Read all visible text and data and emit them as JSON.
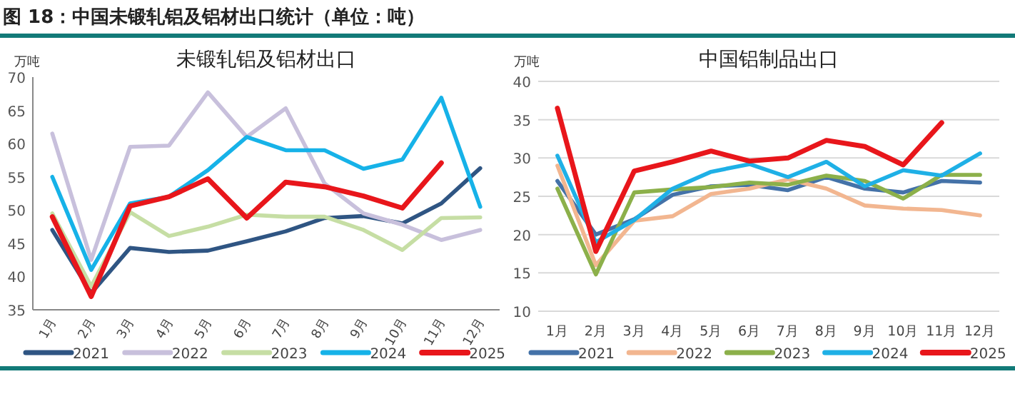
{
  "chart_data": [
    {
      "type": "line",
      "title": "未锻轧铝及铝材出口",
      "ylabel": "万吨",
      "annotations": [
        "图 18：中国未锻轧铝及铝材出口统计（单位：吨）"
      ],
      "categories": [
        "1月",
        "2月",
        "3月",
        "4月",
        "5月",
        "6月",
        "7月",
        "8月",
        "9月",
        "10月",
        "11月",
        "12月"
      ],
      "ylim": [
        35,
        70
      ],
      "yticks": [
        35,
        40,
        45,
        50,
        55,
        60,
        65,
        70
      ],
      "grid": false,
      "legend": "bottom",
      "marker": "none",
      "series": [
        {
          "name": "2021",
          "color": "#2f5583",
          "values": [
            47,
            37.5,
            44.3,
            43.7,
            43.9,
            45.3,
            46.8,
            48.8,
            49.1,
            48,
            51,
            56.3
          ]
        },
        {
          "name": "2022",
          "color": "#c8c0dc",
          "values": [
            61.5,
            42.5,
            59.5,
            59.7,
            67.7,
            61,
            65.3,
            54,
            49.5,
            47.8,
            45.5,
            47
          ]
        },
        {
          "name": "2023",
          "color": "#c6dea4",
          "values": [
            49.5,
            38.5,
            49.7,
            46.1,
            47.5,
            49.3,
            49,
            49,
            47,
            44,
            48.8,
            48.9
          ]
        },
        {
          "name": "2024",
          "color": "#16b2e8",
          "values": [
            55,
            41,
            51,
            52,
            56,
            61,
            59,
            59,
            56.2,
            57.6,
            66.9,
            50.5
          ]
        },
        {
          "name": "2025",
          "color": "#e8161b",
          "values": [
            49,
            37,
            50.6,
            52,
            54.7,
            48.8,
            54.2,
            53.5,
            52.1,
            50.3,
            57.1,
            null
          ]
        }
      ]
    },
    {
      "type": "line",
      "title": "中国铝制品出口",
      "ylabel": "万吨",
      "categories": [
        "1月",
        "2月",
        "3月",
        "4月",
        "5月",
        "6月",
        "7月",
        "8月",
        "9月",
        "10月",
        "11月",
        "12月"
      ],
      "ylim": [
        10,
        40
      ],
      "yticks": [
        10,
        15,
        20,
        25,
        30,
        35,
        40
      ],
      "grid": "y",
      "legend": "bottom",
      "marker": "none",
      "series": [
        {
          "name": "2021",
          "color": "#4472a8",
          "values": [
            27,
            20,
            22,
            25.2,
            26.3,
            26.5,
            25.8,
            27.5,
            26,
            25.5,
            27,
            26.8
          ]
        },
        {
          "name": "2022",
          "color": "#f2b690",
          "values": [
            29,
            16,
            21.8,
            22.4,
            25.3,
            26,
            27.2,
            26,
            23.8,
            23.4,
            23.2,
            22.5
          ]
        },
        {
          "name": "2023",
          "color": "#8cb04a",
          "values": [
            26,
            14.8,
            25.5,
            25.9,
            26.2,
            26.8,
            26.5,
            27.7,
            27,
            24.7,
            27.8,
            27.8
          ]
        },
        {
          "name": "2024",
          "color": "#1fb0e6",
          "values": [
            30.3,
            19,
            21.9,
            26,
            28.2,
            29.2,
            27.5,
            29.5,
            26.3,
            28.4,
            27.7,
            30.6
          ]
        },
        {
          "name": "2025",
          "color": "#e8161b",
          "values": [
            36.5,
            17.8,
            28.3,
            29.5,
            30.9,
            29.6,
            30,
            32.3,
            31.5,
            29.1,
            34.6,
            null
          ]
        }
      ]
    }
  ]
}
